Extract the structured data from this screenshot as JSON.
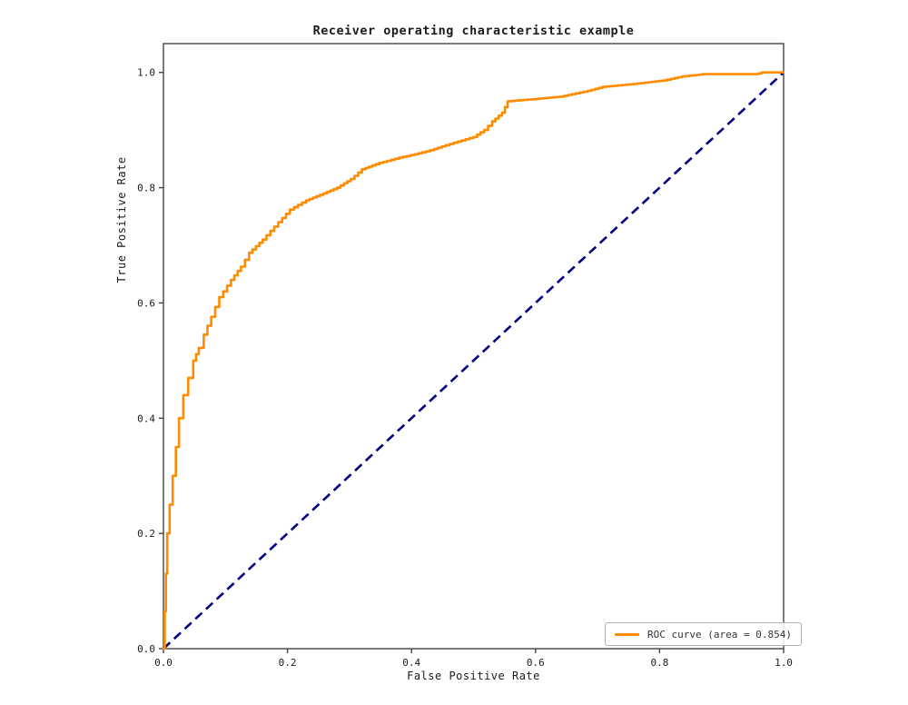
{
  "chart_data": {
    "type": "line",
    "title": "Receiver operating characteristic example",
    "xlabel": "False Positive Rate",
    "ylabel": "True Positive Rate",
    "xlim": [
      0.0,
      1.0
    ],
    "ylim": [
      0.0,
      1.05
    ],
    "xticks": [
      "0.0",
      "0.2",
      "0.4",
      "0.6",
      "0.8",
      "1.0"
    ],
    "yticks": [
      "0.0",
      "0.2",
      "0.4",
      "0.6",
      "0.8",
      "1.0"
    ],
    "grid": false,
    "legend": {
      "position": "lower right",
      "entries": [
        {
          "label": "ROC curve (area = 0.854)",
          "color": "#ff8c00"
        }
      ]
    },
    "colors": {
      "roc_curve": "#ff8c00",
      "chance_line": "#000080",
      "axis": "#444444",
      "tick_text": "#1a1a1a",
      "background": "#ffffff"
    },
    "series": [
      {
        "name": "ROC curve",
        "style": "staircase-solid",
        "color": "#ff8c00",
        "area": 0.854,
        "points": [
          [
            0.0,
            0.0
          ],
          [
            0.002,
            0.065
          ],
          [
            0.004,
            0.13
          ],
          [
            0.006,
            0.2
          ],
          [
            0.01,
            0.25
          ],
          [
            0.015,
            0.3
          ],
          [
            0.02,
            0.35
          ],
          [
            0.025,
            0.4
          ],
          [
            0.032,
            0.44
          ],
          [
            0.04,
            0.47
          ],
          [
            0.048,
            0.5
          ],
          [
            0.057,
            0.522
          ],
          [
            0.065,
            0.545
          ],
          [
            0.077,
            0.576
          ],
          [
            0.09,
            0.61
          ],
          [
            0.109,
            0.64
          ],
          [
            0.125,
            0.663
          ],
          [
            0.138,
            0.687
          ],
          [
            0.16,
            0.71
          ],
          [
            0.185,
            0.74
          ],
          [
            0.204,
            0.762
          ],
          [
            0.23,
            0.778
          ],
          [
            0.258,
            0.79
          ],
          [
            0.28,
            0.8
          ],
          [
            0.302,
            0.815
          ],
          [
            0.32,
            0.832
          ],
          [
            0.348,
            0.843
          ],
          [
            0.38,
            0.852
          ],
          [
            0.405,
            0.858
          ],
          [
            0.43,
            0.865
          ],
          [
            0.468,
            0.878
          ],
          [
            0.5,
            0.888
          ],
          [
            0.517,
            0.9
          ],
          [
            0.53,
            0.915
          ],
          [
            0.546,
            0.93
          ],
          [
            0.555,
            0.95
          ],
          [
            0.6,
            0.954
          ],
          [
            0.64,
            0.958
          ],
          [
            0.684,
            0.968
          ],
          [
            0.708,
            0.975
          ],
          [
            0.758,
            0.98
          ],
          [
            0.806,
            0.986
          ],
          [
            0.836,
            0.993
          ],
          [
            0.87,
            0.997
          ],
          [
            0.955,
            0.997
          ],
          [
            0.965,
            1.0
          ],
          [
            1.0,
            1.0
          ]
        ]
      },
      {
        "name": "chance diagonal",
        "style": "dashed",
        "color": "#000080",
        "points": [
          [
            0.0,
            0.0
          ],
          [
            1.0,
            1.0
          ]
        ]
      }
    ]
  }
}
